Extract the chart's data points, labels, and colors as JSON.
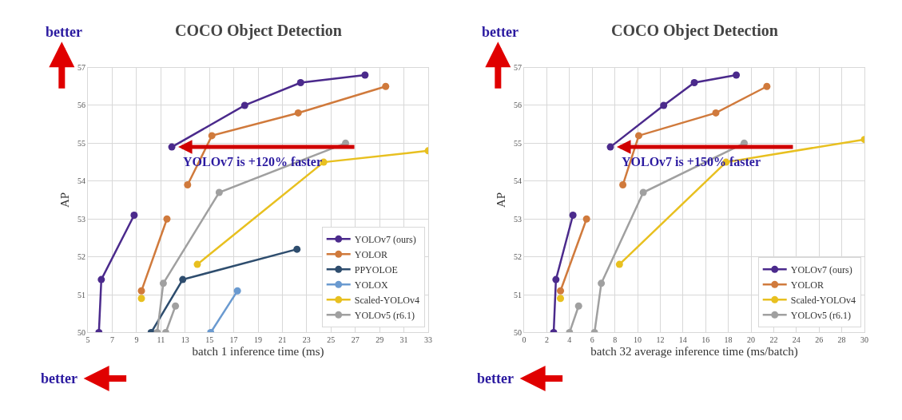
{
  "chart_data": [
    {
      "type": "line",
      "title": "COCO Object Detection",
      "xlabel": "batch 1 inference time (ms)",
      "ylabel": "AP",
      "xlim": [
        5,
        33
      ],
      "xticks": [
        5,
        7,
        9,
        11,
        13,
        15,
        17,
        19,
        21,
        23,
        25,
        27,
        29,
        31,
        33
      ],
      "ylim": [
        50,
        57
      ],
      "yticks": [
        50,
        51,
        52,
        53,
        54,
        55,
        56,
        57
      ],
      "grid": true,
      "legend": "bottom right",
      "marker": "circle",
      "series": [
        {
          "name": "YOLOv7 (ours)",
          "color": "#4b2a8c",
          "x": [
            5.9,
            6.1,
            8.8,
            null,
            11.9,
            17.9,
            22.5,
            27.8
          ],
          "values": [
            50,
            51.4,
            53.1,
            null,
            54.9,
            56.0,
            56.6,
            56.8
          ]
        },
        {
          "name": "YOLOR",
          "color": "#d07a3c",
          "x": [
            9.4,
            11.5,
            null,
            13.2,
            15.2,
            22.3,
            29.5
          ],
          "values": [
            51.1,
            53.0,
            null,
            53.9,
            55.2,
            55.8,
            56.5
          ]
        },
        {
          "name": "PPYOLOE",
          "color": "#2e4d6e",
          "x": [
            10.2,
            12.8,
            22.2
          ],
          "values": [
            50,
            51.4,
            52.2
          ]
        },
        {
          "name": "YOLOX",
          "color": "#6a9ad0",
          "x": [
            15.1,
            17.3
          ],
          "values": [
            50,
            51.1
          ]
        },
        {
          "name": "Scaled-YOLOv4",
          "color": "#e8c020",
          "x": [
            9.4,
            null,
            14.0,
            24.4,
            33
          ],
          "values": [
            50.9,
            null,
            51.8,
            54.5,
            54.8
          ]
        },
        {
          "name": "YOLOv5 (r6.1)",
          "color": "#a0a0a0",
          "x": [
            10.7,
            11.2,
            15.8,
            26.2,
            null,
            11.4,
            12.2
          ],
          "values": [
            50,
            51.3,
            53.7,
            55.0,
            null,
            50,
            50.7
          ]
        }
      ],
      "annotations": [
        "better",
        "better",
        {
          "text": "YOLOv7 is +120% faster",
          "x": 11.9,
          "y": 54.9
        }
      ]
    },
    {
      "type": "line",
      "title": "COCO Object Detection",
      "xlabel": "batch 32 average inference time (ms/batch)",
      "ylabel": "AP",
      "xlim": [
        0,
        30
      ],
      "xticks": [
        0,
        2,
        4,
        6,
        8,
        10,
        12,
        14,
        16,
        18,
        20,
        22,
        24,
        26,
        28,
        30
      ],
      "ylim": [
        50,
        57
      ],
      "yticks": [
        50,
        51,
        52,
        53,
        54,
        55,
        56,
        57
      ],
      "grid": true,
      "legend": "bottom right",
      "marker": "circle",
      "series": [
        {
          "name": "YOLOv7 (ours)",
          "color": "#4b2a8c",
          "x": [
            2.6,
            2.8,
            4.3,
            null,
            7.6,
            12.3,
            15.0,
            18.7
          ],
          "values": [
            50,
            51.4,
            53.1,
            null,
            54.9,
            56.0,
            56.6,
            56.8
          ]
        },
        {
          "name": "YOLOR",
          "color": "#d07a3c",
          "x": [
            3.2,
            5.5,
            null,
            8.7,
            10.1,
            16.9,
            21.4
          ],
          "values": [
            51.1,
            53.0,
            null,
            53.9,
            55.2,
            55.8,
            56.5
          ]
        },
        {
          "name": "Scaled-YOLOv4",
          "color": "#e8c020",
          "x": [
            3.2,
            null,
            8.4,
            17.8,
            30
          ],
          "values": [
            50.9,
            null,
            51.8,
            54.5,
            55.1
          ]
        },
        {
          "name": "YOLOv5 (r6.1)",
          "color": "#a0a0a0",
          "x": [
            4.0,
            4.8,
            null,
            6.2,
            6.8,
            10.5,
            19.4
          ],
          "values": [
            50,
            50.7,
            null,
            50,
            51.3,
            53.7,
            55.0
          ]
        }
      ],
      "annotations": [
        "better",
        "better",
        {
          "text": "YOLOv7 is +150% faster",
          "x": 7.6,
          "y": 54.9
        }
      ]
    }
  ]
}
